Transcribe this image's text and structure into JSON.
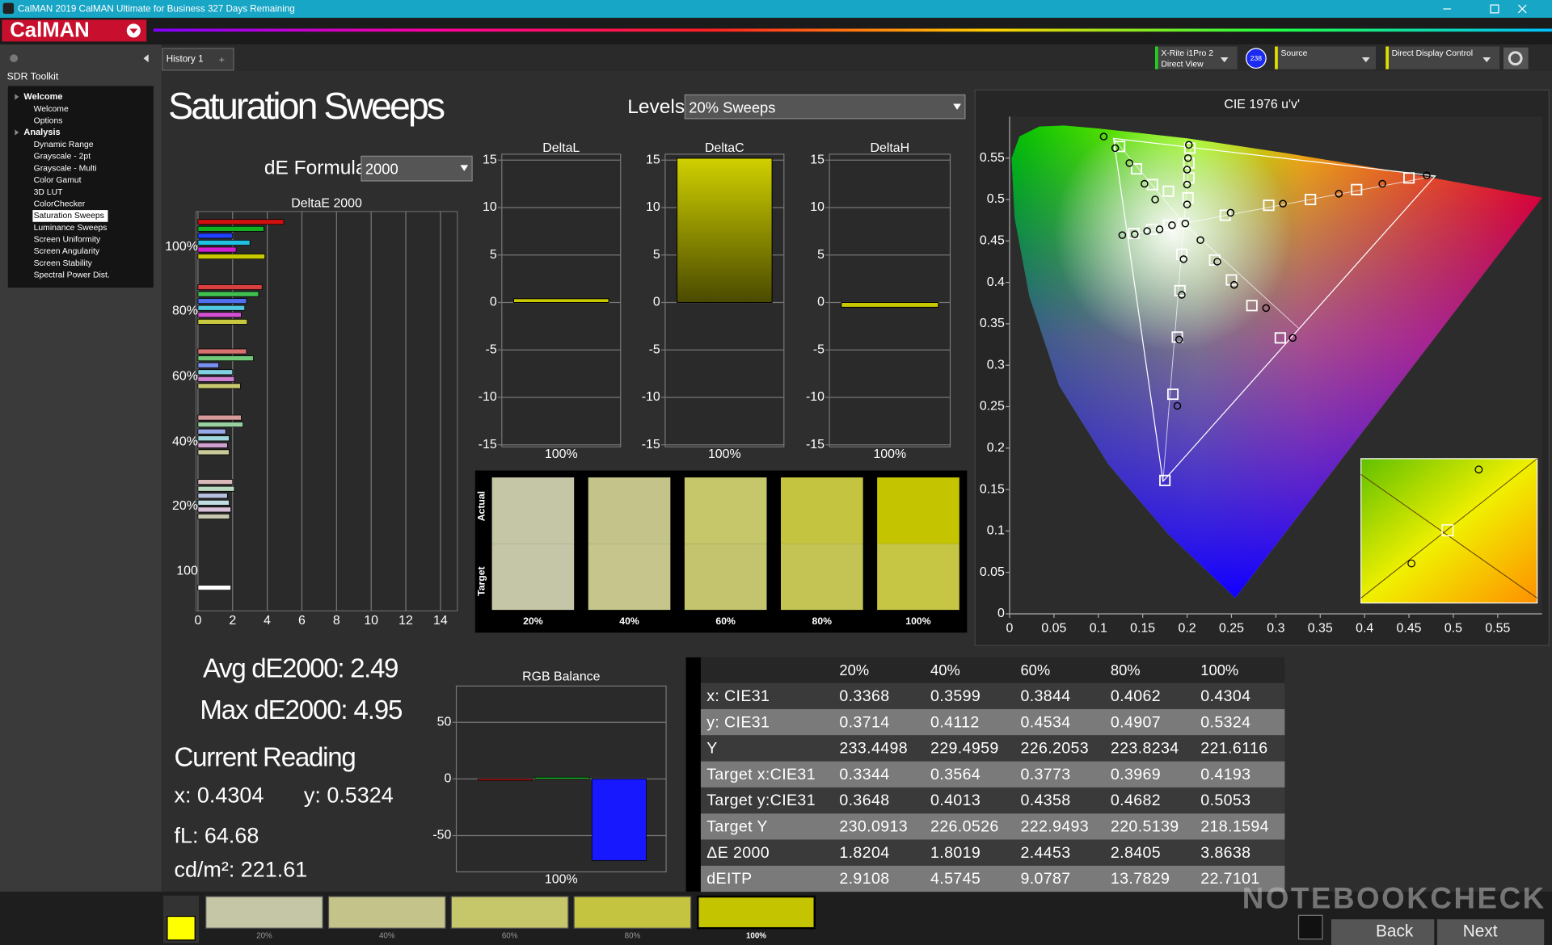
{
  "titlebar": {
    "text": "CalMAN 2019 CalMAN Ultimate for Business 327 Days Remaining",
    "logo": "CalMAN"
  },
  "sidebar": {
    "title": "SDR Toolkit",
    "selected": "Saturation Sweeps",
    "sections": [
      {
        "title": "Welcome",
        "items": [
          "Welcome",
          "Options"
        ]
      },
      {
        "title": "Analysis",
        "items": [
          "Dynamic Range",
          "Grayscale - 2pt",
          "Grayscale - Multi",
          "Color Gamut",
          "3D LUT",
          "ColorChecker",
          "Saturation Sweeps",
          "Luminance Sweeps",
          "Screen Uniformity",
          "Screen Angularity",
          "Screen Stability",
          "Spectral Power Dist."
        ]
      }
    ]
  },
  "tab": "History 1",
  "devices": {
    "meter": [
      "X-Rite i1Pro 2",
      "Direct View"
    ],
    "badge": "238",
    "source": "Source",
    "display": "Direct Display Control"
  },
  "heading": "Saturation Sweeps",
  "levels": {
    "label": "Levels:",
    "value": "20% Sweeps"
  },
  "formula": {
    "label": "dE Formula:",
    "value": "2000"
  },
  "deltae_chart": {
    "type": "bar",
    "orientation": "horizontal",
    "title": "DeltaE 2000",
    "xlim": [
      0,
      15
    ],
    "xticks": [
      0,
      2,
      4,
      6,
      8,
      10,
      12,
      14
    ],
    "groups": [
      {
        "label": "100%",
        "bars": [
          {
            "value": 4.95,
            "color": "#d01010"
          },
          {
            "value": 3.8,
            "color": "#10b020"
          },
          {
            "value": 2.0,
            "color": "#2040ff"
          },
          {
            "value": 3.0,
            "color": "#20c0e0"
          },
          {
            "value": 2.2,
            "color": "#d020d0"
          },
          {
            "value": 3.86,
            "color": "#c8c800"
          }
        ]
      },
      {
        "label": "80%",
        "bars": [
          {
            "value": 3.7,
            "color": "#d84040"
          },
          {
            "value": 3.5,
            "color": "#40c050"
          },
          {
            "value": 2.8,
            "color": "#5070f0"
          },
          {
            "value": 2.7,
            "color": "#50c8e0"
          },
          {
            "value": 2.5,
            "color": "#d050d0"
          },
          {
            "value": 2.84,
            "color": "#c8c840"
          }
        ]
      },
      {
        "label": "60%",
        "bars": [
          {
            "value": 2.8,
            "color": "#d87070"
          },
          {
            "value": 3.2,
            "color": "#70c878"
          },
          {
            "value": 1.2,
            "color": "#7890f0"
          },
          {
            "value": 2.0,
            "color": "#80d0e0"
          },
          {
            "value": 2.1,
            "color": "#d080d0"
          },
          {
            "value": 2.45,
            "color": "#c8c870"
          }
        ]
      },
      {
        "label": "40%",
        "bars": [
          {
            "value": 2.5,
            "color": "#d89a9a"
          },
          {
            "value": 2.6,
            "color": "#98d0a0"
          },
          {
            "value": 1.6,
            "color": "#98a8e8"
          },
          {
            "value": 1.8,
            "color": "#a0d8e0"
          },
          {
            "value": 1.7,
            "color": "#d0a0d0"
          },
          {
            "value": 1.8,
            "color": "#c8c898"
          }
        ]
      },
      {
        "label": "20%",
        "bars": [
          {
            "value": 2.0,
            "color": "#d8b8b8"
          },
          {
            "value": 2.1,
            "color": "#b8d8c0"
          },
          {
            "value": 1.7,
            "color": "#b8c0e0"
          },
          {
            "value": 1.8,
            "color": "#c0dce0"
          },
          {
            "value": 1.9,
            "color": "#d8c0d8"
          },
          {
            "value": 1.82,
            "color": "#c8c8b0"
          }
        ]
      },
      {
        "label": "100",
        "bars": [
          {
            "value": 1.9,
            "color": "#ffffff"
          }
        ]
      }
    ]
  },
  "delta_axis": {
    "ylim": [
      -15,
      15
    ],
    "yticks": [
      15,
      10,
      5,
      0,
      -5,
      -10,
      -15
    ]
  },
  "delta_charts": [
    {
      "type": "bar",
      "title": "DeltaL",
      "category": "100%",
      "value": 0.4,
      "color": "#c8c800"
    },
    {
      "type": "bar",
      "title": "DeltaC",
      "category": "100%",
      "value": 15.2,
      "color": "#c8c800"
    },
    {
      "type": "bar",
      "title": "DeltaH",
      "category": "100%",
      "value": -0.5,
      "color": "#c8c800"
    }
  ],
  "swatches": {
    "actual_label": "Actual",
    "target_label": "Target",
    "items": [
      {
        "label": "20%",
        "actual": "#c4c6a6",
        "target": "#c5c6a8"
      },
      {
        "label": "40%",
        "actual": "#c4c48a",
        "target": "#c5c58c"
      },
      {
        "label": "60%",
        "actual": "#c6c66a",
        "target": "#c4c46e"
      },
      {
        "label": "80%",
        "actual": "#c4c440",
        "target": "#c4c454"
      },
      {
        "label": "100%",
        "actual": "#c4c400",
        "target": "#c6c644"
      }
    ]
  },
  "stats": {
    "avg": "Avg dE2000: 2.49",
    "max": "Max dE2000: 4.95",
    "reading_title": "Current Reading",
    "x": "x: 0.4304",
    "y": "y: 0.5324",
    "fl": "fL: 64.68",
    "cdm2": "cd/m²: 221.61"
  },
  "rgb_balance": {
    "type": "bar",
    "title": "RGB Balance",
    "category": "100%",
    "ylim": [
      -82,
      82
    ],
    "yticks": [
      50,
      0,
      -50
    ],
    "series": [
      {
        "color": "#e01010",
        "values": [
          -0.5
        ]
      },
      {
        "color": "#10c020",
        "values": [
          1.5
        ]
      },
      {
        "color": "#1818ff",
        "values": [
          -72
        ]
      }
    ]
  },
  "table": {
    "header": [
      "",
      "20%",
      "40%",
      "60%",
      "80%",
      "100%"
    ],
    "rows": [
      [
        "x: CIE31",
        "0.3368",
        "0.3599",
        "0.3844",
        "0.4062",
        "0.4304"
      ],
      [
        "y: CIE31",
        "0.3714",
        "0.4112",
        "0.4534",
        "0.4907",
        "0.5324"
      ],
      [
        "Y",
        "233.4498",
        "229.4959",
        "226.2053",
        "223.8234",
        "221.6116"
      ],
      [
        "Target x:CIE31",
        "0.3344",
        "0.3564",
        "0.3773",
        "0.3969",
        "0.4193"
      ],
      [
        "Target y:CIE31",
        "0.3648",
        "0.4013",
        "0.4358",
        "0.4682",
        "0.5053"
      ],
      [
        "Target Y",
        "230.0913",
        "226.0526",
        "222.9493",
        "220.5139",
        "218.1594"
      ],
      [
        "ΔE 2000",
        "1.8204",
        "1.8019",
        "2.4453",
        "2.8405",
        "3.8638"
      ],
      [
        "dEITP",
        "2.9108",
        "4.5745",
        "9.0787",
        "13.7829",
        "22.7101"
      ]
    ]
  },
  "cie": {
    "type": "scatter",
    "title": "CIE 1976 u'v'",
    "xlim": [
      0,
      0.6
    ],
    "ylim": [
      0,
      0.6
    ],
    "xticks": [
      0,
      0.05,
      0.1,
      0.15,
      0.2,
      0.25,
      0.3,
      0.35,
      0.4,
      0.45,
      0.5,
      0.55
    ],
    "yticks": [
      0,
      0.05,
      0.1,
      0.15,
      0.2,
      0.25,
      0.3,
      0.35,
      0.4,
      0.45,
      0.5,
      0.55
    ],
    "series": [
      {
        "marker": "square",
        "color": "#ffffff",
        "x": [
          0.196,
          0.243,
          0.292,
          0.339,
          0.391,
          0.45,
          0.179,
          0.161,
          0.143,
          0.124,
          0.194,
          0.192,
          0.189,
          0.184,
          0.175,
          0.179,
          0.16,
          0.14,
          0.231,
          0.25,
          0.273,
          0.305,
          0.201,
          0.202,
          0.202,
          0.203
        ],
        "values": [
          0.471,
          0.481,
          0.493,
          0.5,
          0.512,
          0.526,
          0.51,
          0.518,
          0.537,
          0.564,
          0.434,
          0.39,
          0.334,
          0.265,
          0.161,
          0.469,
          0.464,
          0.459,
          0.427,
          0.403,
          0.372,
          0.333,
          0.502,
          0.526,
          0.544,
          0.562
        ]
      },
      {
        "marker": "circle",
        "color": "#000000",
        "x": [
          0.198,
          0.249,
          0.308,
          0.371,
          0.42,
          0.47,
          0.164,
          0.152,
          0.135,
          0.119,
          0.106,
          0.196,
          0.194,
          0.191,
          0.189,
          0.183,
          0.169,
          0.155,
          0.141,
          0.127,
          0.215,
          0.234,
          0.253,
          0.289,
          0.319,
          0.2,
          0.2,
          0.2,
          0.201,
          0.202
        ],
        "values": [
          0.471,
          0.484,
          0.495,
          0.507,
          0.519,
          0.529,
          0.5,
          0.519,
          0.544,
          0.562,
          0.576,
          0.428,
          0.385,
          0.331,
          0.251,
          0.469,
          0.464,
          0.462,
          0.458,
          0.457,
          0.451,
          0.425,
          0.397,
          0.369,
          0.333,
          0.494,
          0.518,
          0.536,
          0.55,
          0.566
        ]
      }
    ]
  },
  "bottom_strip": {
    "tiles": [
      {
        "label": "20%",
        "color": "#c4c6a6"
      },
      {
        "label": "40%",
        "color": "#c4c48a"
      },
      {
        "label": "60%",
        "color": "#c6c66a"
      },
      {
        "label": "80%",
        "color": "#c4c440"
      },
      {
        "label": "100%",
        "color": "#c4c400"
      }
    ],
    "back": "Back",
    "next": "Next",
    "watermark": "NOTEBOOKCHECK"
  }
}
